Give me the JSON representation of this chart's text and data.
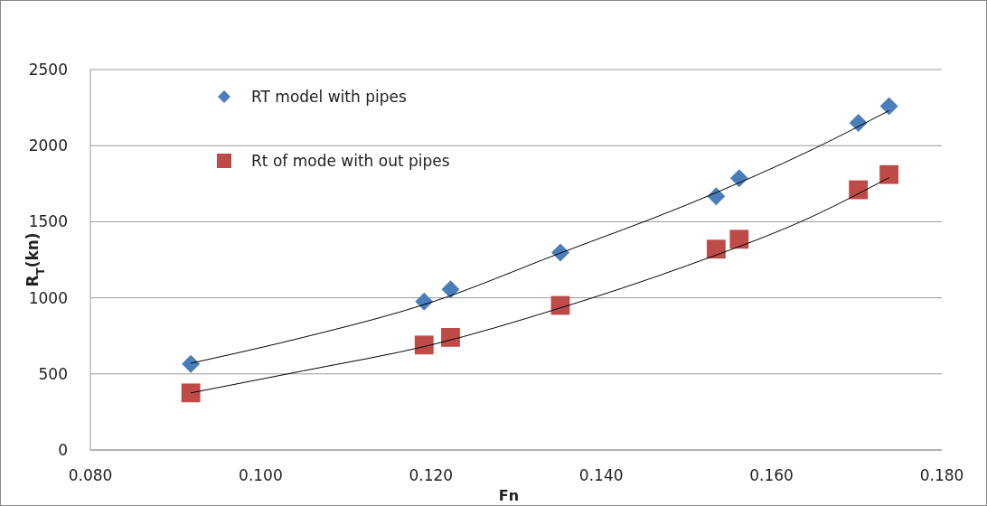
{
  "chart_data": {
    "type": "scatter",
    "xlabel": "Fn",
    "ylabel": "R$_{T}$(kn)",
    "xlim": [
      0.08,
      0.18
    ],
    "xticks": [
      {
        "value": 0.08,
        "label": "0.080"
      },
      {
        "value": 0.1,
        "label": "0.100"
      },
      {
        "value": 0.12,
        "label": "0.120"
      },
      {
        "value": 0.14,
        "label": "0.140"
      },
      {
        "value": 0.16,
        "label": "0.160"
      },
      {
        "value": 0.18,
        "label": "0.180"
      }
    ],
    "ylim": [
      0,
      2500
    ],
    "yticks": [
      0,
      500,
      1000,
      1500,
      2000,
      2500
    ],
    "grid": "y",
    "legend": "top left",
    "series": [
      {
        "name": "RT model with pipes",
        "color": "#4a7ebb",
        "marker": "diamond",
        "x": [
          0.0918,
          0.1192,
          0.1223,
          0.1352,
          0.1535,
          0.1562,
          0.1702,
          0.1738
        ],
        "values": [
          565,
          976,
          1055,
          1297,
          1667,
          1786,
          2150,
          2260
        ]
      },
      {
        "name": "Rt of mode with out pipes",
        "color": "#be4b48",
        "marker": "square",
        "x": [
          0.0918,
          0.1192,
          0.1223,
          0.1352,
          0.1535,
          0.1562,
          0.1702,
          0.1738
        ],
        "values": [
          375,
          690,
          740,
          950,
          1320,
          1385,
          1710,
          1810
        ]
      },
      {
        "type": "line",
        "color": "#000000",
        "marker": "none",
        "x": [
          0.0918,
          0.105,
          0.12,
          0.135,
          0.15,
          0.165,
          0.1738
        ],
        "values": [
          570,
          740,
          970,
          1290,
          1610,
          1980,
          2230
        ]
      },
      {
        "type": "line",
        "color": "#000000",
        "marker": "none",
        "x": [
          0.0918,
          0.105,
          0.12,
          0.135,
          0.15,
          0.165,
          0.1738
        ],
        "values": [
          375,
          520,
          690,
          930,
          1210,
          1540,
          1790
        ]
      }
    ]
  }
}
